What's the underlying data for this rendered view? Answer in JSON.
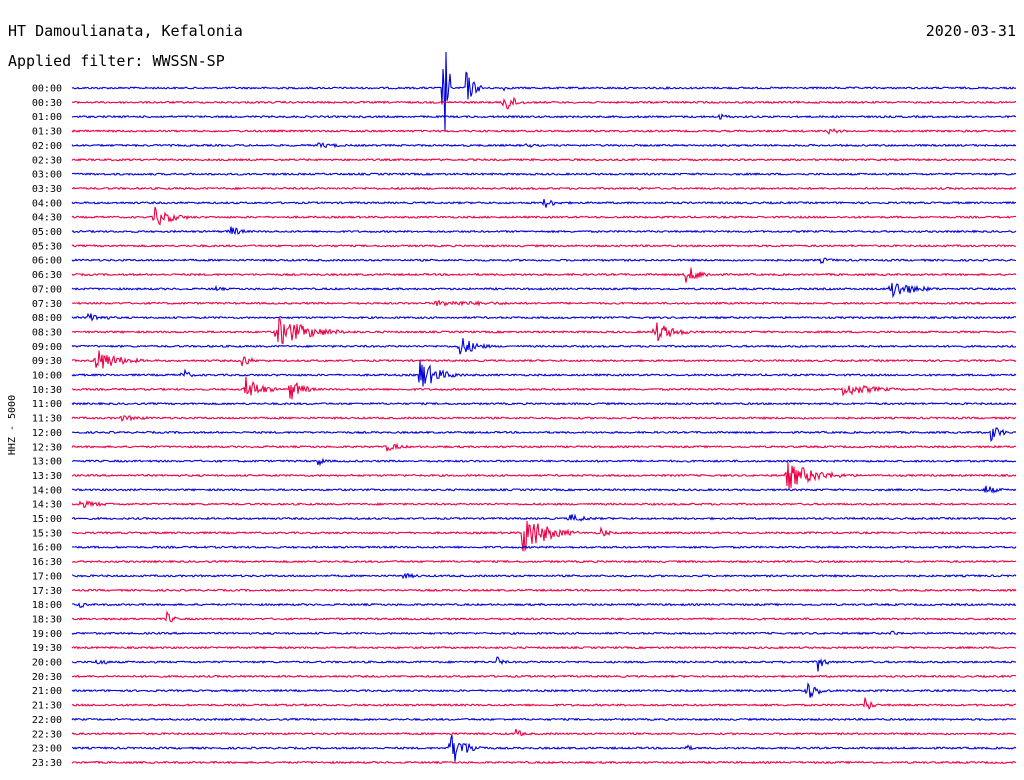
{
  "header": {
    "station": "HT Damoulianata, Kefalonia",
    "date": "2020-03-31",
    "filter": "Applied filter: WWSSN-SP"
  },
  "side_label": "HHZ - 5000",
  "colors": {
    "blue": "#0000dd",
    "red": "#ee0044",
    "text": "#000000"
  },
  "chart_data": {
    "type": "line",
    "description_kind": "helicorder",
    "rows": [
      "00:00",
      "00:30",
      "01:00",
      "01:30",
      "02:00",
      "02:30",
      "03:00",
      "03:30",
      "04:00",
      "04:30",
      "05:00",
      "05:30",
      "06:00",
      "06:30",
      "07:00",
      "07:30",
      "08:00",
      "08:30",
      "09:00",
      "09:30",
      "10:00",
      "10:30",
      "11:00",
      "11:30",
      "12:00",
      "12:30",
      "13:00",
      "13:30",
      "14:00",
      "14:30",
      "15:00",
      "15:30",
      "16:00",
      "16:30",
      "17:00",
      "17:30",
      "18:00",
      "18:30",
      "19:00",
      "19:30",
      "20:00",
      "20:30",
      "21:00",
      "21:30",
      "22:00",
      "22:30",
      "23:00",
      "23:30"
    ],
    "row_minutes": 30,
    "row_colors": [
      "blue",
      "red"
    ],
    "events": [
      {
        "row": "00:00",
        "minute": 12.5,
        "amp": 20,
        "dur": 0.4
      },
      {
        "row": "00:00",
        "minute": 13.7,
        "amp": 3,
        "dur": 0.3
      },
      {
        "row": "00:30",
        "minute": 13.7,
        "amp": 14,
        "dur": 0.5
      },
      {
        "row": "01:00",
        "minute": 20.5,
        "amp": 4,
        "dur": 0.6
      },
      {
        "row": "01:30",
        "minute": 24.0,
        "amp": 3,
        "dur": 1.0
      },
      {
        "row": "02:00",
        "minute": 7.8,
        "amp": 3,
        "dur": 1.5
      },
      {
        "row": "02:00",
        "minute": 14.4,
        "amp": 3,
        "dur": 0.6
      },
      {
        "row": "03:30",
        "minute": 18.0,
        "amp": 2,
        "dur": 0.4
      },
      {
        "row": "04:00",
        "minute": 15.0,
        "amp": 6,
        "dur": 0.6
      },
      {
        "row": "04:30",
        "minute": 2.6,
        "amp": 11,
        "dur": 1.0
      },
      {
        "row": "05:00",
        "minute": 5.0,
        "amp": 7,
        "dur": 0.5
      },
      {
        "row": "06:00",
        "minute": 23.8,
        "amp": 3,
        "dur": 0.8
      },
      {
        "row": "06:30",
        "minute": 19.5,
        "amp": 10,
        "dur": 0.8
      },
      {
        "row": "07:00",
        "minute": 26.0,
        "amp": 11,
        "dur": 1.2
      },
      {
        "row": "07:00",
        "minute": 4.5,
        "amp": 4,
        "dur": 0.4
      },
      {
        "row": "07:30",
        "minute": 11.5,
        "amp": 3,
        "dur": 5.0
      },
      {
        "row": "08:00",
        "minute": 0.5,
        "amp": 5,
        "dur": 1.0
      },
      {
        "row": "08:30",
        "minute": 6.5,
        "amp": 16,
        "dur": 1.8
      },
      {
        "row": "08:30",
        "minute": 18.5,
        "amp": 12,
        "dur": 1.0
      },
      {
        "row": "09:00",
        "minute": 12.3,
        "amp": 12,
        "dur": 0.8
      },
      {
        "row": "09:30",
        "minute": 0.7,
        "amp": 14,
        "dur": 1.2
      },
      {
        "row": "09:30",
        "minute": 5.4,
        "amp": 8,
        "dur": 0.4
      },
      {
        "row": "10:00",
        "minute": 11.0,
        "amp": 18,
        "dur": 1.0
      },
      {
        "row": "10:00",
        "minute": 3.5,
        "amp": 8,
        "dur": 0.3
      },
      {
        "row": "10:30",
        "minute": 5.5,
        "amp": 14,
        "dur": 0.8
      },
      {
        "row": "10:30",
        "minute": 6.9,
        "amp": 14,
        "dur": 0.6
      },
      {
        "row": "10:30",
        "minute": 24.5,
        "amp": 7,
        "dur": 1.8
      },
      {
        "row": "11:30",
        "minute": 1.5,
        "amp": 3,
        "dur": 2.0
      },
      {
        "row": "12:00",
        "minute": 29.2,
        "amp": 10,
        "dur": 0.5
      },
      {
        "row": "12:30",
        "minute": 10.0,
        "amp": 5,
        "dur": 0.8
      },
      {
        "row": "13:00",
        "minute": 7.8,
        "amp": 6,
        "dur": 0.3
      },
      {
        "row": "13:30",
        "minute": 22.7,
        "amp": 15,
        "dur": 1.6
      },
      {
        "row": "14:00",
        "minute": 29.0,
        "amp": 6,
        "dur": 0.6
      },
      {
        "row": "14:30",
        "minute": 0.2,
        "amp": 4,
        "dur": 1.5
      },
      {
        "row": "15:00",
        "minute": 15.8,
        "amp": 5,
        "dur": 1.0
      },
      {
        "row": "15:30",
        "minute": 14.3,
        "amp": 24,
        "dur": 1.2
      },
      {
        "row": "15:30",
        "minute": 16.8,
        "amp": 7,
        "dur": 0.3
      },
      {
        "row": "17:00",
        "minute": 10.5,
        "amp": 3,
        "dur": 1.0
      },
      {
        "row": "18:00",
        "minute": 0.2,
        "amp": 4,
        "dur": 0.4
      },
      {
        "row": "18:30",
        "minute": 3.0,
        "amp": 8,
        "dur": 0.3
      },
      {
        "row": "19:00",
        "minute": 26.0,
        "amp": 4,
        "dur": 0.4
      },
      {
        "row": "20:00",
        "minute": 0.8,
        "amp": 6,
        "dur": 0.4
      },
      {
        "row": "20:00",
        "minute": 13.5,
        "amp": 6,
        "dur": 0.3
      },
      {
        "row": "20:00",
        "minute": 23.7,
        "amp": 10,
        "dur": 0.3
      },
      {
        "row": "21:00",
        "minute": 23.3,
        "amp": 12,
        "dur": 0.6
      },
      {
        "row": "21:30",
        "minute": 25.2,
        "amp": 9,
        "dur": 0.3
      },
      {
        "row": "22:30",
        "minute": 14.1,
        "amp": 6,
        "dur": 0.3
      },
      {
        "row": "23:00",
        "minute": 12.0,
        "amp": 20,
        "dur": 0.8
      },
      {
        "row": "23:00",
        "minute": 19.5,
        "amp": 4,
        "dur": 0.3
      }
    ],
    "main_event": {
      "row": "00:00",
      "minute": 11.8,
      "amp": 80
    }
  }
}
